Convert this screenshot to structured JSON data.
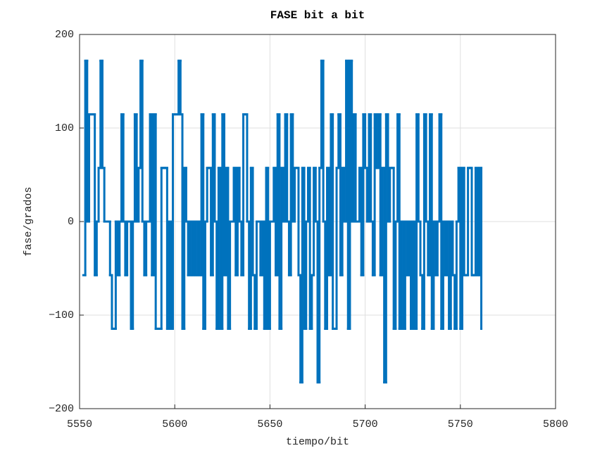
{
  "chart_data": {
    "type": "line",
    "drawstyle": "steps-post",
    "title": "FASE bit a bit",
    "xlabel": "tiempo/bit",
    "ylabel": "fase/grados",
    "color": "#0072bd",
    "grid": true,
    "xlim": [
      5550,
      5800
    ],
    "ylim": [
      -200,
      200
    ],
    "xticks": [
      5550,
      5600,
      5650,
      5700,
      5750,
      5800
    ],
    "yticks": [
      {
        "value": -200,
        "label": "−200"
      },
      {
        "value": -100,
        "label": "−100"
      },
      0,
      100,
      200
    ],
    "x": [
      5552,
      5553,
      5554,
      5555,
      5556,
      5557,
      5558,
      5559,
      5560,
      5561,
      5562,
      5563,
      5564,
      5565,
      5566,
      5567,
      5568,
      5569,
      5570,
      5571,
      5572,
      5573,
      5574,
      5575,
      5576,
      5577,
      5578,
      5579,
      5580,
      5581,
      5582,
      5583,
      5584,
      5585,
      5586,
      5587,
      5588,
      5589,
      5590,
      5591,
      5592,
      5593,
      5594,
      5595,
      5596,
      5597,
      5598,
      5599,
      5600,
      5601,
      5602,
      5603,
      5604,
      5605,
      5606,
      5607,
      5608,
      5609,
      5610,
      5611,
      5612,
      5613,
      5614,
      5615,
      5616,
      5617,
      5618,
      5619,
      5620,
      5621,
      5622,
      5623,
      5624,
      5625,
      5626,
      5627,
      5628,
      5629,
      5630,
      5631,
      5632,
      5633,
      5634,
      5635,
      5636,
      5637,
      5638,
      5639,
      5640,
      5641,
      5642,
      5643,
      5644,
      5645,
      5646,
      5647,
      5648,
      5649,
      5650,
      5651,
      5652,
      5653,
      5654,
      5655,
      5656,
      5657,
      5658,
      5659,
      5660,
      5661,
      5662,
      5663,
      5664,
      5665,
      5666,
      5667,
      5668,
      5669,
      5670,
      5671,
      5672,
      5673,
      5674,
      5675,
      5676,
      5677,
      5678,
      5679,
      5680,
      5681,
      5682,
      5683,
      5684,
      5685,
      5686,
      5687,
      5688,
      5689,
      5690,
      5691,
      5692,
      5693,
      5694,
      5695,
      5696,
      5697,
      5698,
      5699,
      5700,
      5701,
      5702,
      5703,
      5704,
      5705,
      5706,
      5707,
      5708,
      5709,
      5710,
      5711,
      5712,
      5713,
      5714,
      5715,
      5716,
      5717,
      5718,
      5719,
      5720,
      5721,
      5722,
      5723,
      5724,
      5725,
      5726,
      5727,
      5728,
      5729,
      5730,
      5731,
      5732,
      5733,
      5734,
      5735,
      5736,
      5737,
      5738,
      5739,
      5740,
      5741,
      5742,
      5743,
      5744,
      5745,
      5746,
      5747,
      5748,
      5749,
      5750,
      5751,
      5752,
      5753,
      5754,
      5755,
      5756,
      5757,
      5758,
      5759,
      5760,
      5761
    ],
    "values": [
      -57.3,
      171.9,
      0,
      114.6,
      114.6,
      114.6,
      -57.3,
      0,
      57.3,
      171.9,
      57.3,
      0,
      0,
      0,
      -57.3,
      -114.6,
      -114.6,
      0,
      -57.3,
      0,
      114.6,
      0,
      -57.3,
      0,
      0,
      -114.6,
      0,
      114.6,
      0,
      57.3,
      171.9,
      0,
      -57.3,
      0,
      0,
      114.6,
      -57.3,
      114.6,
      -114.6,
      -114.6,
      -114.6,
      57.3,
      57.3,
      57.3,
      -114.6,
      0,
      -114.6,
      114.6,
      114.6,
      114.6,
      171.9,
      114.6,
      -114.6,
      57.3,
      0,
      -57.3,
      0,
      -57.3,
      0,
      -57.3,
      0,
      -57.3,
      114.6,
      -114.6,
      0,
      57.3,
      57.3,
      -57.3,
      114.6,
      0,
      -114.6,
      57.3,
      -114.6,
      114.6,
      -57.3,
      57.3,
      -114.6,
      0,
      0,
      57.3,
      -57.3,
      57.3,
      0,
      -57.3,
      114.6,
      114.6,
      0,
      -114.6,
      57.3,
      -57.3,
      -114.6,
      0,
      0,
      -57.3,
      0,
      -114.6,
      57.3,
      -114.6,
      0,
      0,
      57.3,
      -57.3,
      114.6,
      -114.6,
      57.3,
      0,
      114.6,
      0,
      -57.3,
      114.6,
      0,
      57.3,
      57.3,
      -57.3,
      -171.9,
      57.3,
      -114.6,
      0,
      57.3,
      -114.6,
      -57.3,
      57.3,
      0,
      -171.9,
      57.3,
      171.9,
      0,
      -114.6,
      57.3,
      -57.3,
      114.6,
      -114.6,
      -114.6,
      57.3,
      114.6,
      -57.3,
      57.3,
      0,
      171.9,
      -114.6,
      171.9,
      0,
      114.6,
      0,
      0,
      57.3,
      -57.3,
      114.6,
      57.3,
      0,
      114.6,
      0,
      -57.3,
      114.6,
      57.3,
      114.6,
      -57.3,
      57.3,
      -171.9,
      114.6,
      0,
      57.3,
      57.3,
      -114.6,
      0,
      114.6,
      -114.6,
      0,
      -114.6,
      0,
      -57.3,
      0,
      -114.6,
      0,
      -114.6,
      114.6,
      0,
      -57.3,
      -114.6,
      114.6,
      0,
      -57.3,
      114.6,
      -114.6,
      0,
      -57.3,
      0,
      114.6,
      -114.6,
      0,
      -57.3,
      0,
      -114.6,
      0,
      -57.3,
      -114.6,
      0,
      57.3,
      -114.6,
      57.3,
      -57.3,
      -57.3,
      57.3,
      57.3,
      -57.3,
      -57.3,
      57.3,
      -57.3,
      57.3,
      -114.6
    ]
  }
}
